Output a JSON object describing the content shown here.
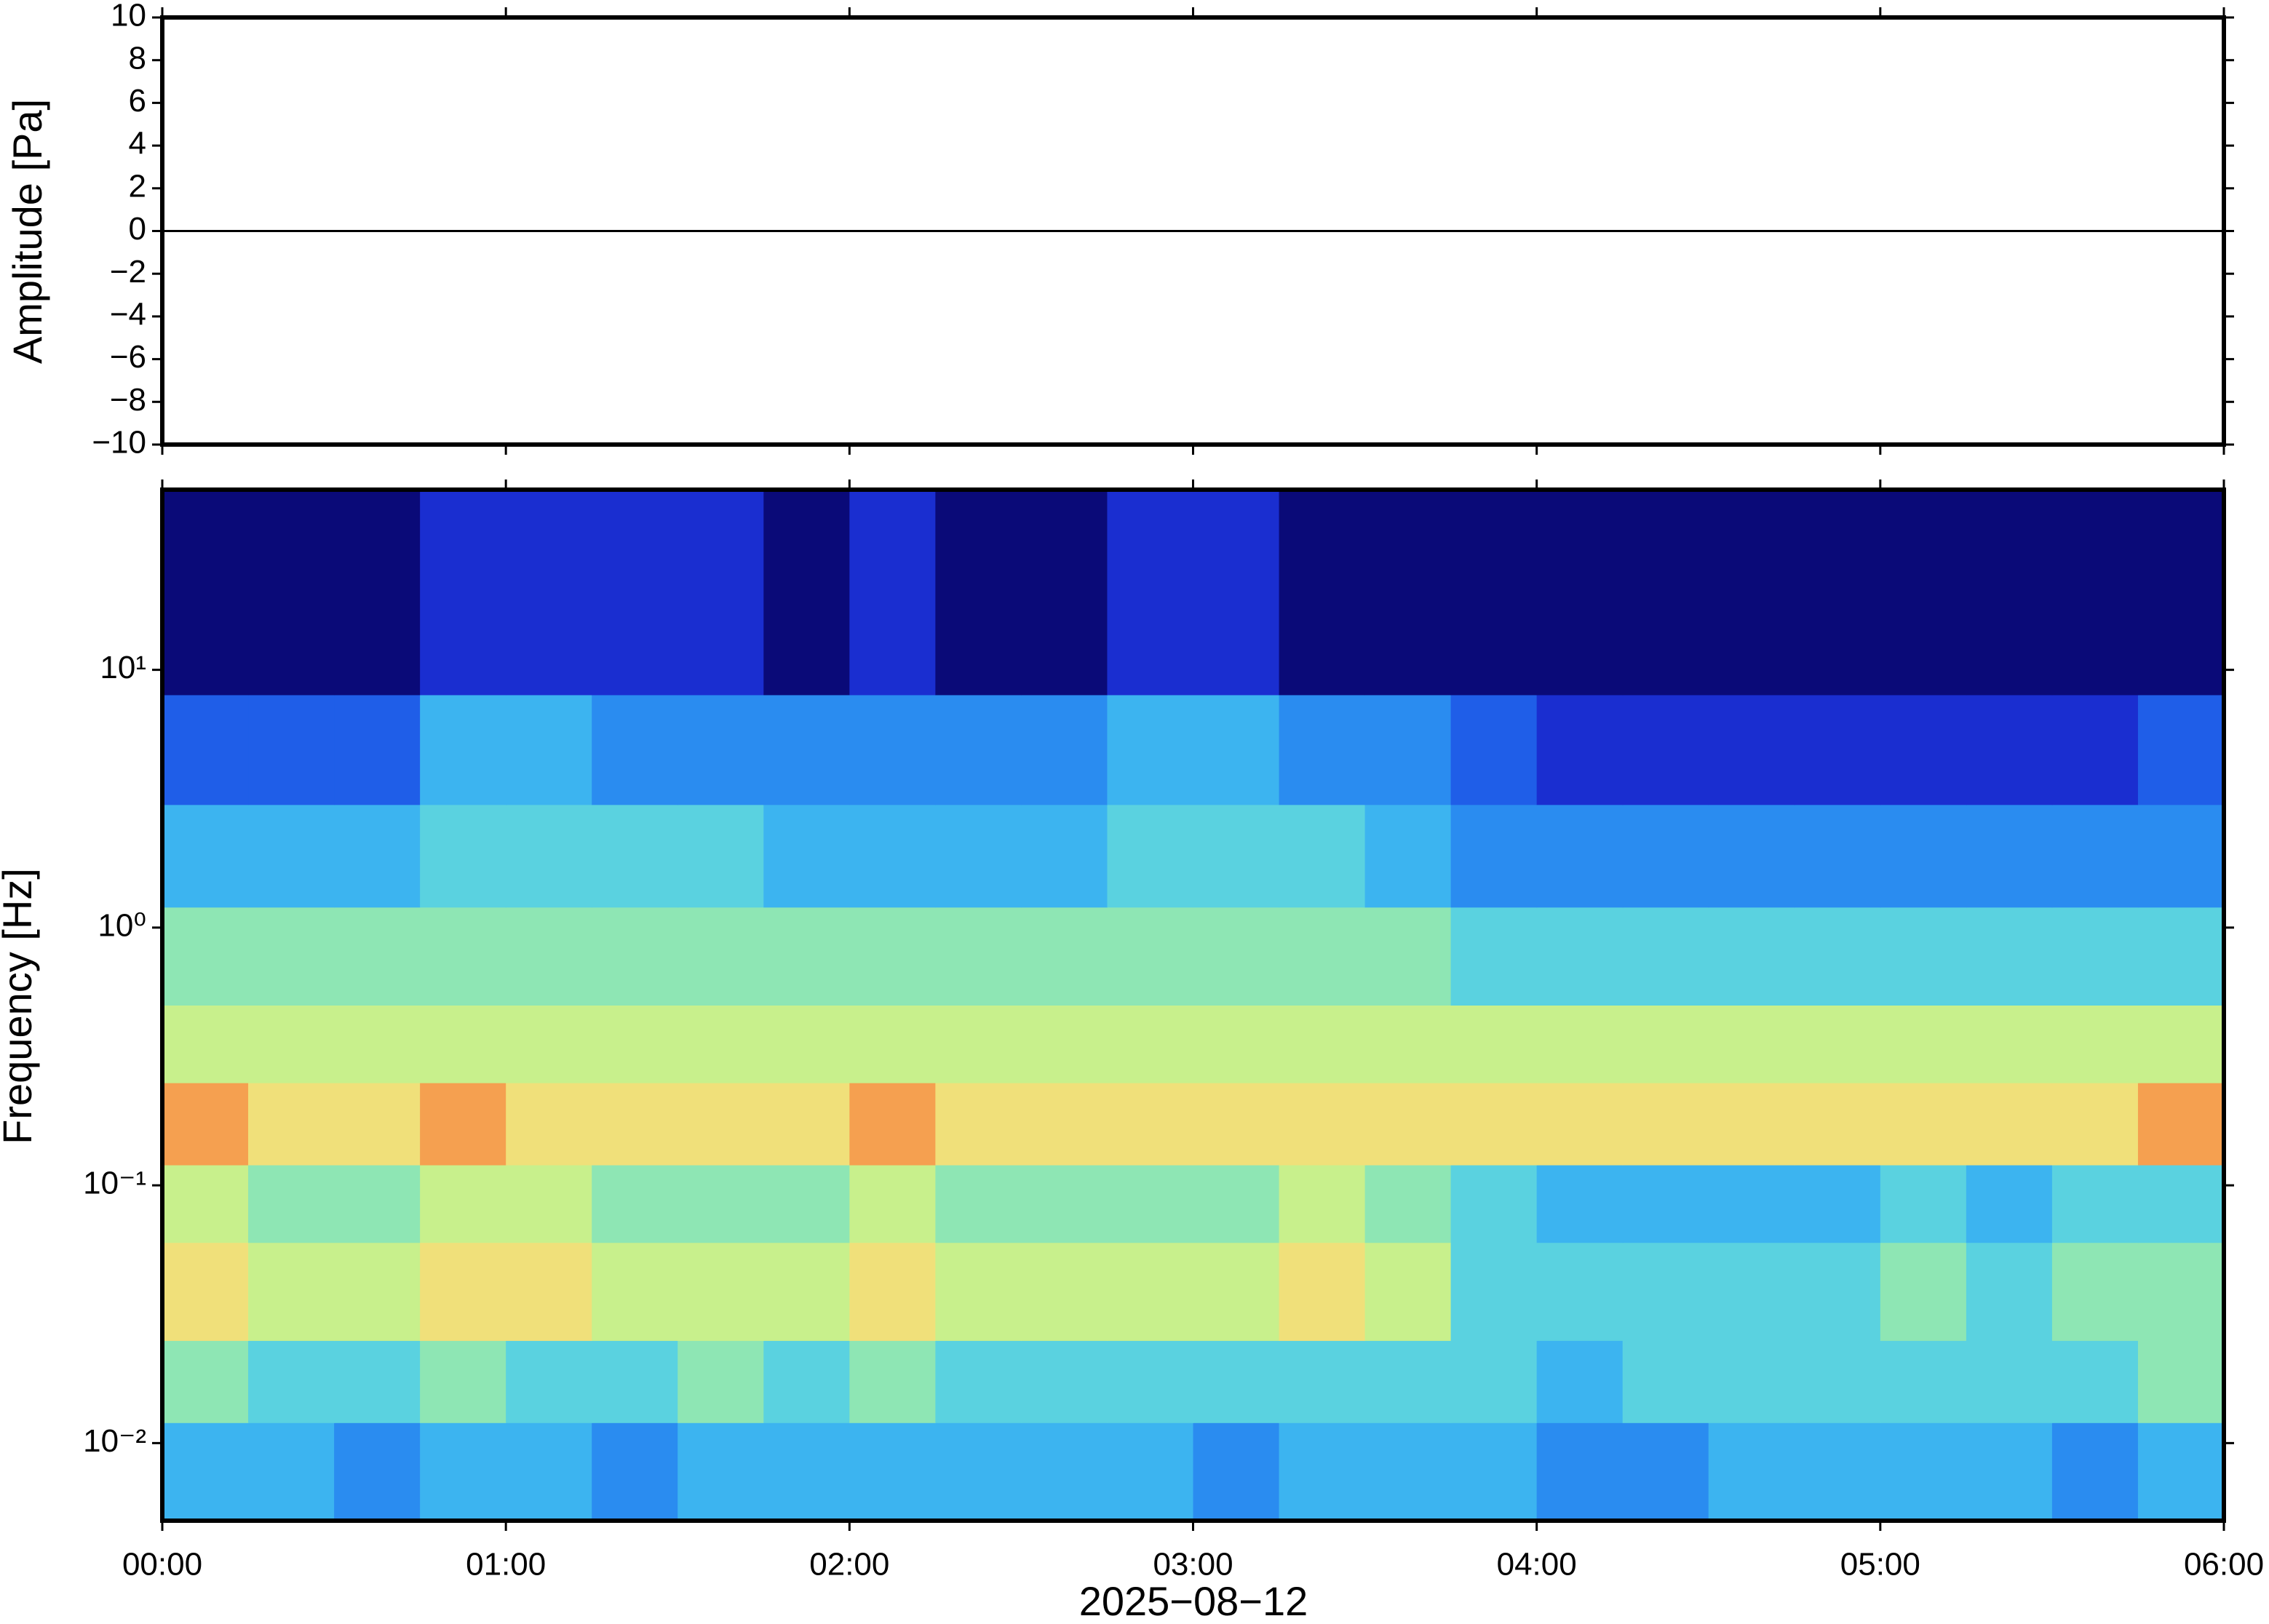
{
  "chart_data": [
    {
      "type": "line",
      "ylabel": "Amplitude [Pa]",
      "x": [
        0,
        30,
        60,
        90,
        120,
        150,
        180,
        210,
        240,
        270,
        300,
        330,
        360
      ],
      "series": [
        {
          "color": "#000000",
          "values": [
            0,
            0,
            0,
            0,
            0,
            0,
            0,
            0,
            0,
            0,
            0,
            0,
            0
          ]
        }
      ],
      "xlim": [
        0,
        360
      ],
      "ylim": [
        -10,
        10
      ],
      "yticks": [
        {
          "value": -10,
          "label": "−10"
        },
        {
          "value": -8,
          "label": "−8"
        },
        {
          "value": -6,
          "label": "−6"
        },
        {
          "value": -4,
          "label": "−4"
        },
        {
          "value": -2,
          "label": "−2"
        },
        0,
        2,
        4,
        6,
        8,
        10
      ]
    },
    {
      "type": "heatmap",
      "ylabel": "Frequency [Hz]",
      "xlabel": "2025−08−12",
      "log_y": true,
      "xlim": [
        0,
        360
      ],
      "ylim": [
        0.005,
        50
      ],
      "xticks": [
        {
          "value": 0,
          "label": "00:00"
        },
        {
          "value": 60,
          "label": "01:00"
        },
        {
          "value": 120,
          "label": "02:00"
        },
        {
          "value": 180,
          "label": "03:00"
        },
        {
          "value": 240,
          "label": "04:00"
        },
        {
          "value": 300,
          "label": "05:00"
        },
        {
          "value": 360,
          "label": "06:00"
        }
      ],
      "yticks": [
        {
          "value": 0.01,
          "label": "10⁻²"
        },
        {
          "value": 0.1,
          "label": "10⁻¹"
        },
        {
          "value": 1,
          "label": "10⁰"
        },
        {
          "value": 10,
          "label": "10¹"
        }
      ],
      "xbins": [
        0,
        15,
        30,
        45,
        60,
        75,
        90,
        105,
        120,
        135,
        150,
        165,
        180,
        195,
        210,
        225,
        240,
        255,
        270,
        285,
        300,
        315,
        330,
        345,
        360
      ],
      "ybins": [
        0.005,
        0.012,
        0.025,
        0.06,
        0.12,
        0.25,
        0.5,
        1.2,
        3,
        8,
        50
      ],
      "colormap": [
        "#0a0a78",
        "#1a2ed0",
        "#1f5ee8",
        "#2a8cf0",
        "#3cb4f0",
        "#5ad2e0",
        "#8ee6b4",
        "#c8f08c",
        "#f0e07a",
        "#f5a050"
      ],
      "values": [
        [
          4,
          4,
          3,
          4,
          4,
          3,
          4,
          4,
          4,
          4,
          4,
          4,
          3,
          4,
          4,
          4,
          3,
          3,
          4,
          4,
          4,
          4,
          3,
          4
        ],
        [
          6,
          5,
          5,
          6,
          5,
          5,
          6,
          5,
          6,
          5,
          5,
          5,
          5,
          5,
          5,
          5,
          4,
          5,
          5,
          5,
          5,
          5,
          5,
          6
        ],
        [
          8,
          7,
          7,
          8,
          8,
          7,
          7,
          7,
          8,
          7,
          7,
          7,
          7,
          8,
          7,
          5,
          5,
          5,
          5,
          5,
          6,
          5,
          6,
          6
        ],
        [
          7,
          6,
          6,
          7,
          7,
          6,
          6,
          6,
          7,
          6,
          6,
          6,
          6,
          7,
          6,
          5,
          4,
          4,
          4,
          4,
          5,
          4,
          5,
          5
        ],
        [
          9,
          8,
          8,
          9,
          8,
          8,
          8,
          8,
          9,
          8,
          8,
          8,
          8,
          8,
          8,
          8,
          8,
          8,
          8,
          8,
          8,
          8,
          8,
          9
        ],
        [
          7,
          7,
          7,
          7,
          7,
          7,
          7,
          7,
          7,
          7,
          7,
          7,
          7,
          7,
          7,
          7,
          7,
          7,
          7,
          7,
          7,
          7,
          7,
          7
        ],
        [
          6,
          6,
          6,
          6,
          6,
          6,
          6,
          6,
          6,
          6,
          6,
          6,
          6,
          6,
          6,
          5,
          5,
          5,
          5,
          5,
          5,
          5,
          5,
          5
        ],
        [
          4,
          4,
          4,
          5,
          5,
          5,
          5,
          4,
          4,
          4,
          4,
          5,
          5,
          5,
          4,
          3,
          3,
          3,
          3,
          3,
          3,
          3,
          3,
          3
        ],
        [
          2,
          2,
          2,
          4,
          4,
          3,
          3,
          3,
          3,
          3,
          3,
          4,
          4,
          3,
          3,
          2,
          1,
          1,
          1,
          1,
          1,
          1,
          1,
          2
        ],
        [
          0,
          0,
          0,
          1,
          1,
          1,
          1,
          0,
          1,
          0,
          0,
          1,
          1,
          0,
          0,
          0,
          0,
          0,
          0,
          0,
          0,
          0,
          0,
          0
        ]
      ]
    }
  ]
}
